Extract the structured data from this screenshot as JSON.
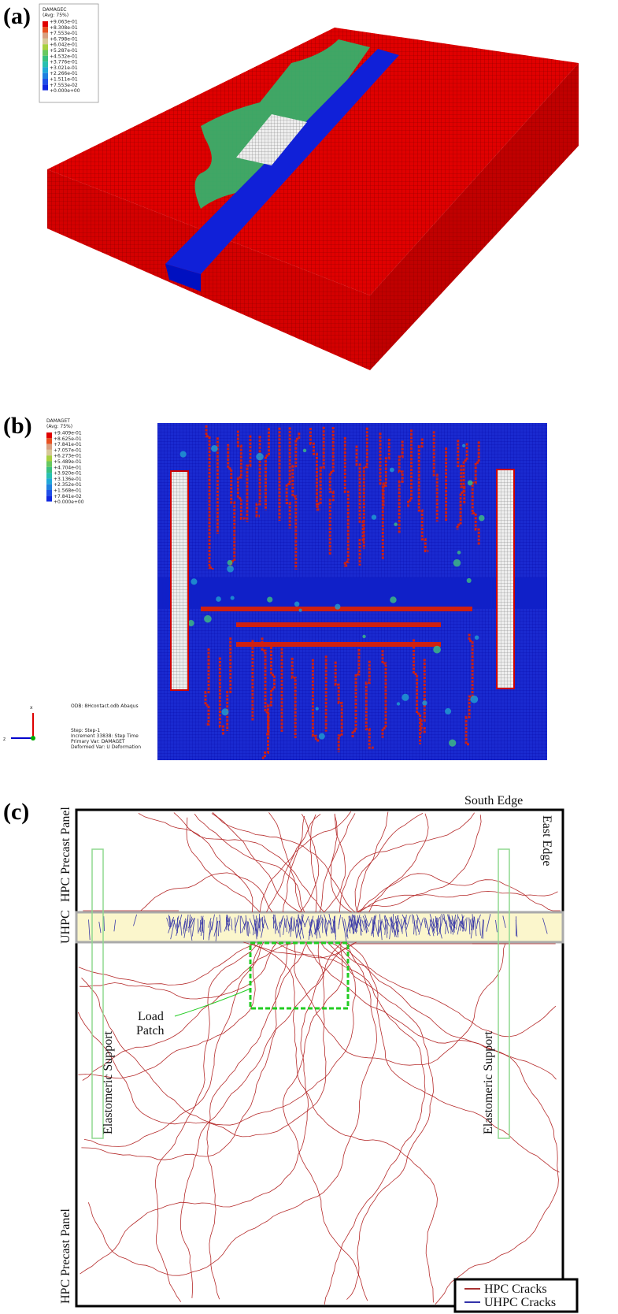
{
  "panels": [
    {
      "label": "(a)",
      "legend": {
        "title": "DAMAGEC",
        "subtitle": "(Avg: 75%)",
        "values": [
          "+9.063e-01",
          "+8.308e-01",
          "+7.553e-01",
          "+6.798e-01",
          "+6.042e-01",
          "+5.287e-01",
          "+4.532e-01",
          "+3.776e-01",
          "+3.021e-01",
          "+2.266e-01",
          "+1.511e-01",
          "+7.553e-02",
          "+0.000e+00"
        ]
      }
    },
    {
      "label": "(b)",
      "legend": {
        "title": "DAMAGET",
        "subtitle": "(Avg: 75%)",
        "values": [
          "+9.409e-01",
          "+8.625e-01",
          "+7.841e-01",
          "+7.057e-01",
          "+6.273e-01",
          "+5.489e-01",
          "+4.704e-01",
          "+3.920e-01",
          "+3.136e-01",
          "+2.352e-01",
          "+1.568e-01",
          "+7.841e-02",
          "+0.000e+00"
        ]
      },
      "info": [
        "ODB: 8Hcontact.odb    Abaqus",
        "Step: Step-1",
        "Increment     33838: Step Time",
        "Primary Var: DAMAGET",
        "Deformed Var: U    Deformation"
      ],
      "axes": [
        "x",
        "z"
      ]
    },
    {
      "label": "(c)",
      "south_edge": "South Edge",
      "east_edge": "East Edge",
      "hpc_top": "HPC Precast Panel",
      "uhpc": "UHPC",
      "hpc_bottom": "HPC Precast Panel",
      "support_left": "Elastomeric Support",
      "support_right": "Elastomeric Support",
      "load_patch": [
        "Load",
        "Patch"
      ],
      "legend": [
        "HPC Cracks",
        "UHPC Cracks"
      ]
    }
  ]
}
